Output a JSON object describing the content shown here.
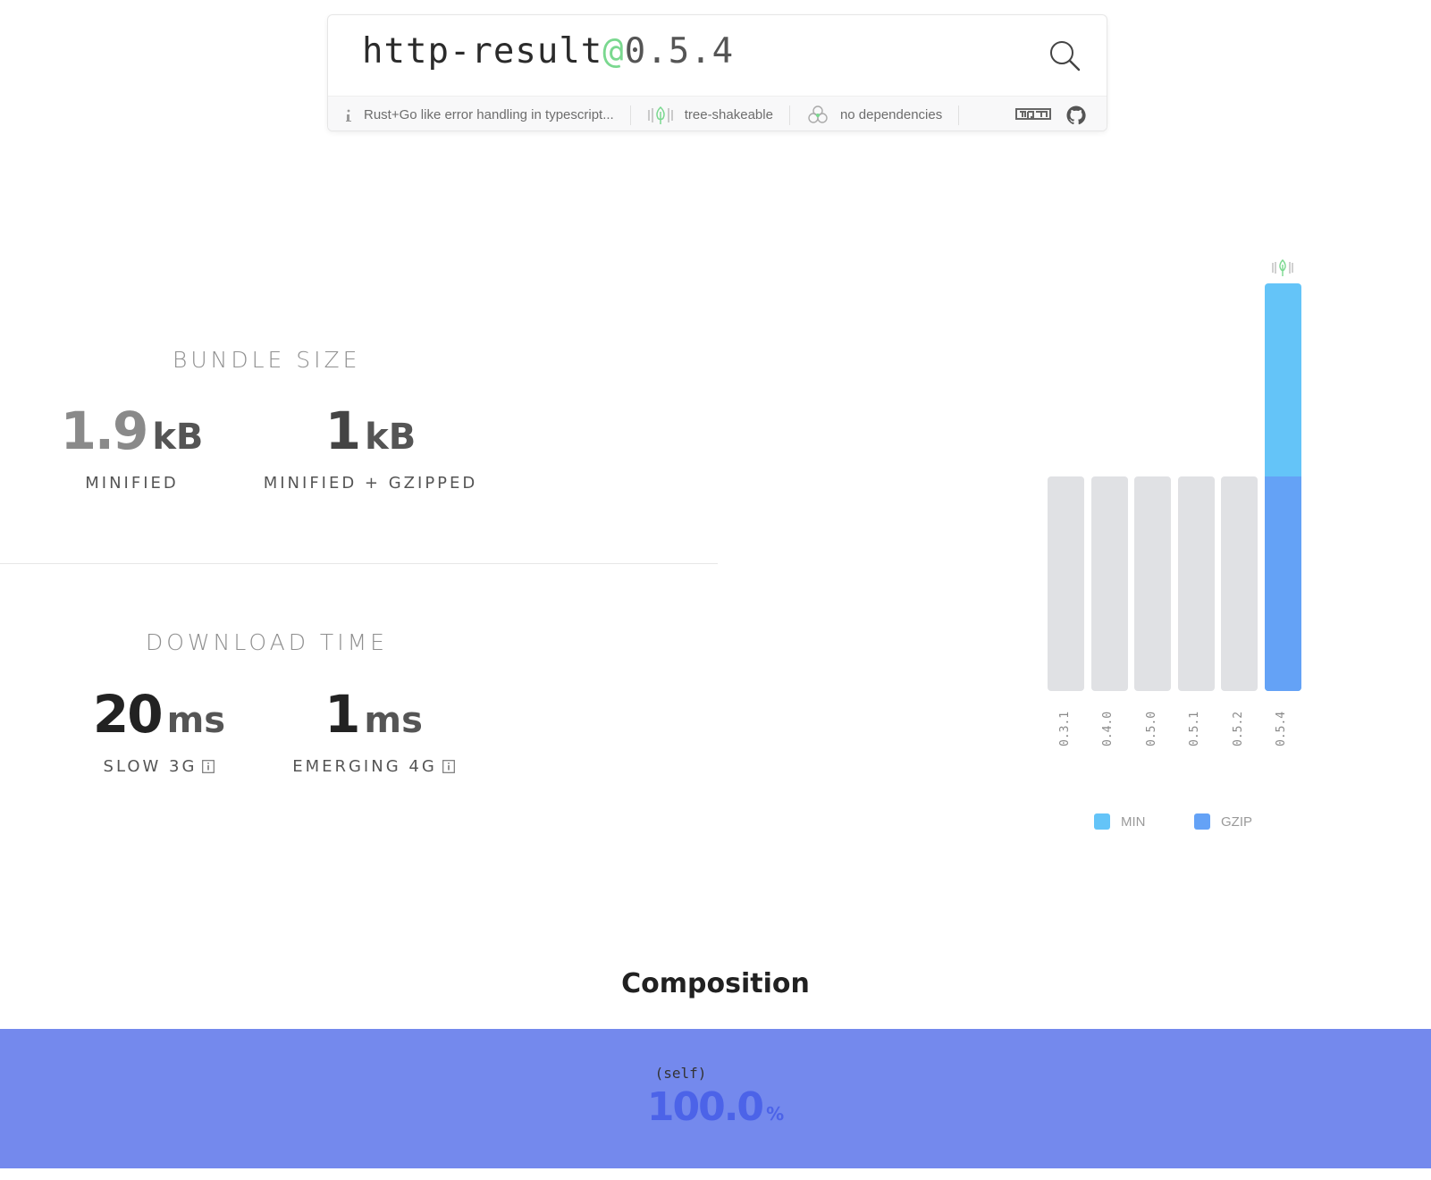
{
  "search": {
    "package_name": "http-result",
    "at": "@",
    "version": "0.5.4"
  },
  "meta": {
    "description": "Rust+Go like error handling in typescript...",
    "tree_shakeable": "tree-shakeable",
    "dependencies": "no dependencies",
    "icons": [
      "info-icon",
      "tree-icon",
      "dependencies-icon",
      "npm-icon",
      "github-icon"
    ]
  },
  "bundle": {
    "title": "BUNDLE SIZE",
    "minified": {
      "value": "1.9",
      "unit": "kB",
      "label": "MINIFIED"
    },
    "gzipped": {
      "value": "1",
      "unit": "kB",
      "label": "MINIFIED + GZIPPED"
    }
  },
  "download": {
    "title": "DOWNLOAD TIME",
    "slow3g": {
      "value": "20",
      "unit": "ms",
      "label": "SLOW 3G"
    },
    "emerging4g": {
      "value": "1",
      "unit": "ms",
      "label": "EMERGING 4G"
    }
  },
  "chart_data": {
    "type": "bar",
    "categories": [
      "0.3.1",
      "0.4.0",
      "0.5.0",
      "0.5.1",
      "0.5.2",
      "0.5.4"
    ],
    "series": [
      {
        "name": "MIN",
        "values": [
          1,
          1,
          1,
          1,
          1,
          1.9
        ]
      },
      {
        "name": "GZIP",
        "values": [
          1,
          1,
          1,
          1,
          1,
          1
        ]
      }
    ],
    "highlighted": "0.5.4",
    "legend": [
      "MIN",
      "GZIP"
    ],
    "legend_position": "bottom",
    "grid": false
  },
  "colors": {
    "min": "#64c4f8",
    "gzip": "#64a2f6",
    "inactive_bar": "#e0e1e4",
    "accent_green": "#7ad88f",
    "composition": "#7489ed",
    "composition_pct": "#4c63e8"
  },
  "composition": {
    "title": "Composition",
    "items": [
      {
        "name": "(self)",
        "percent": "100.0",
        "unit": "%"
      }
    ]
  }
}
